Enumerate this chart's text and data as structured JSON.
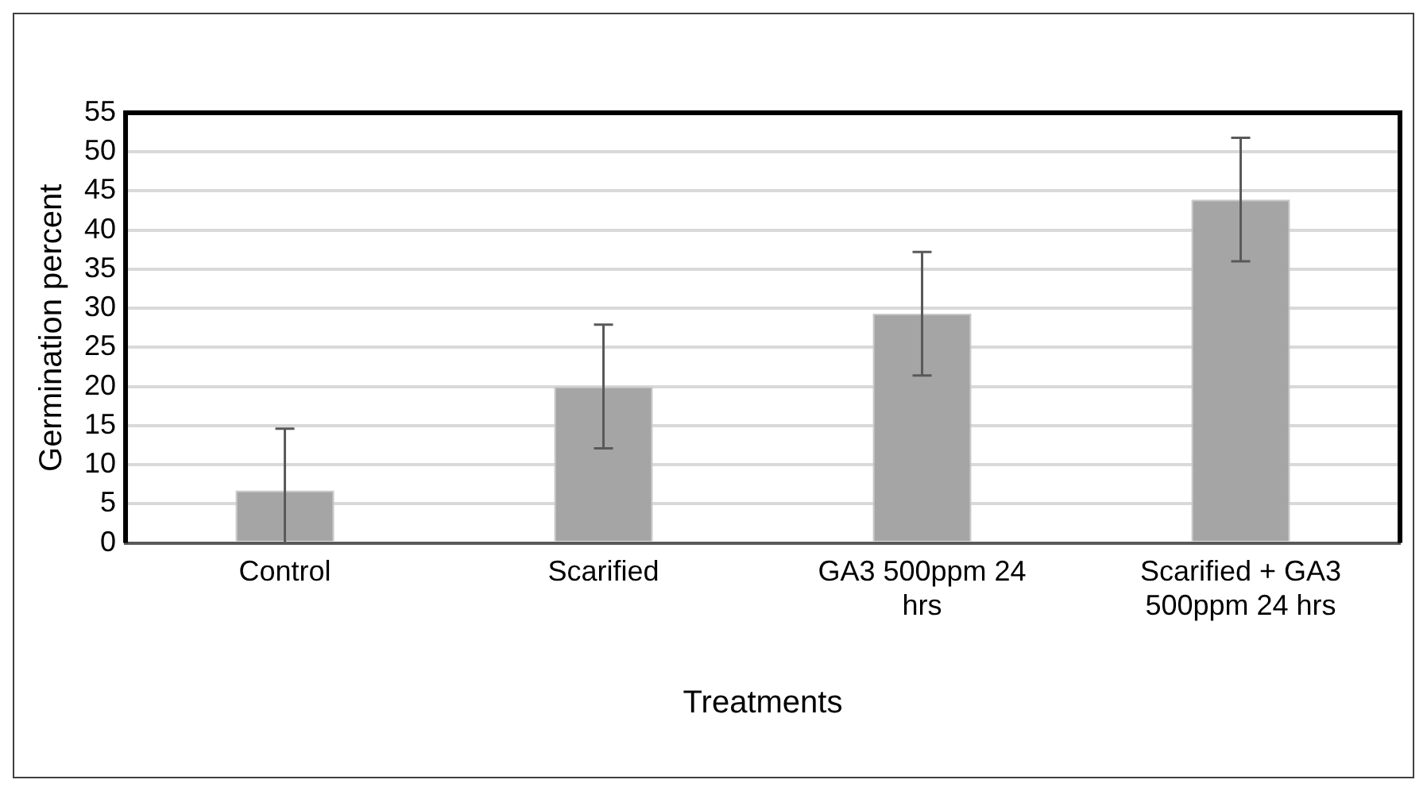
{
  "chart_data": {
    "type": "bar",
    "xlabel": "Treatments",
    "ylabel": "Germination percent",
    "categories": [
      "Control",
      "Scarified",
      "GA3 500ppm 24 hrs",
      "Scarified + GA3 500ppm 24 hrs"
    ],
    "values": [
      6.7,
      20.0,
      29.3,
      43.9
    ],
    "errors": [
      [
        0,
        14.6
      ],
      7.9,
      7.9,
      7.9
    ],
    "color": "#a5a5a5",
    "ylim": [
      0,
      55
    ],
    "yticks": [
      0,
      5,
      10,
      15,
      20,
      25,
      30,
      35,
      40,
      45,
      50,
      55
    ],
    "grid": "y",
    "legend": false
  }
}
